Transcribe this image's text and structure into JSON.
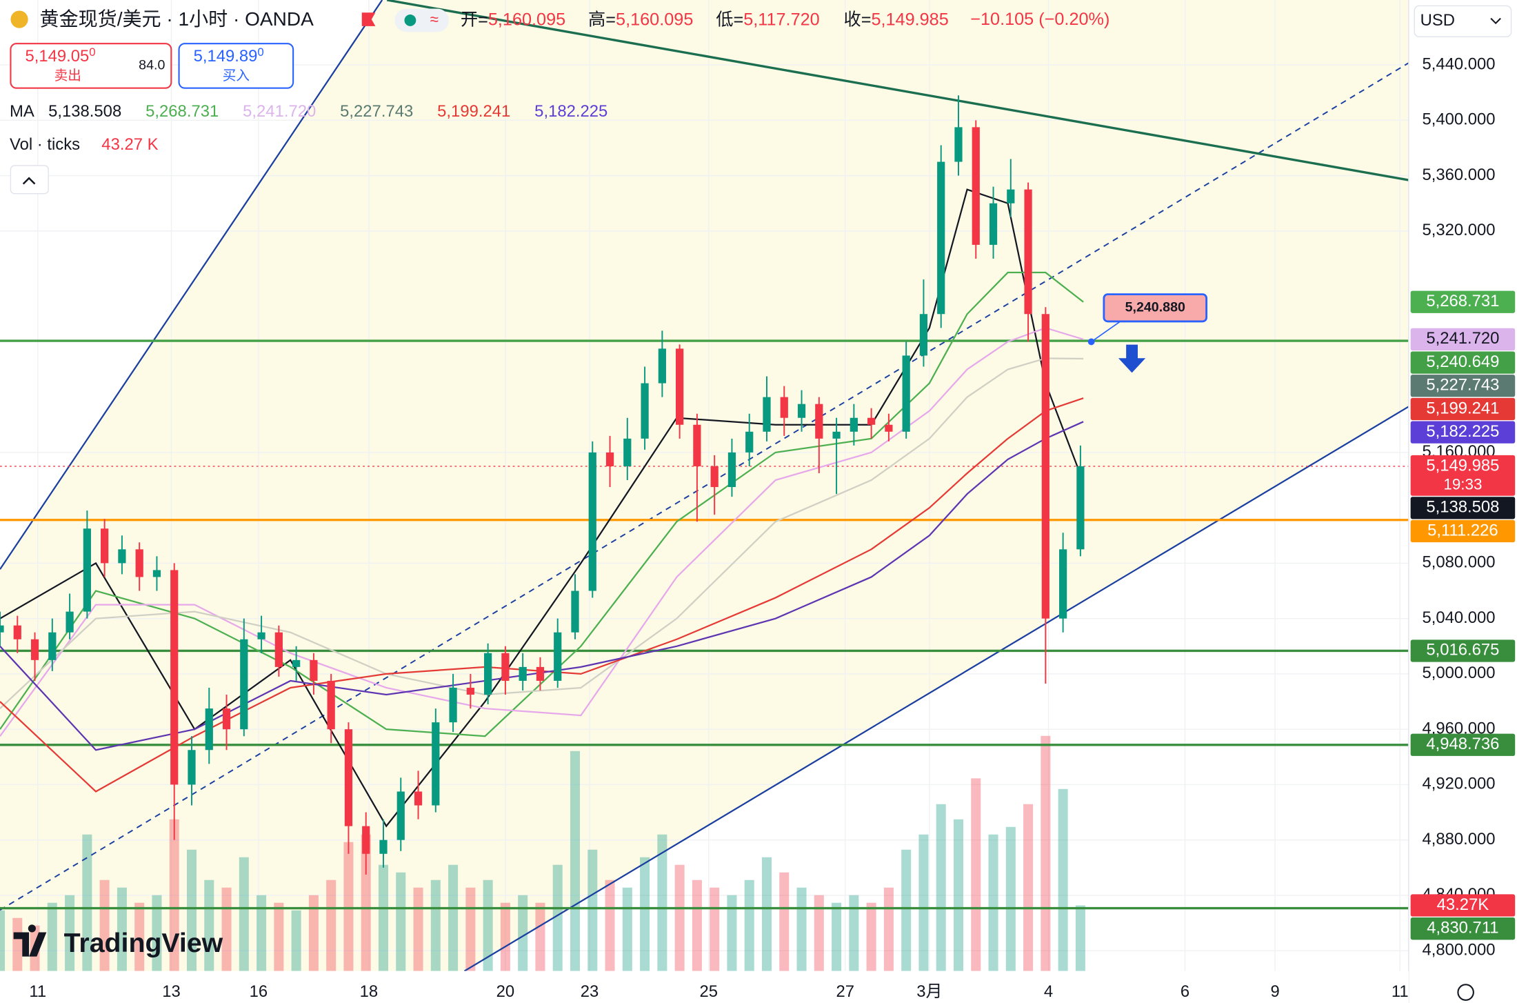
{
  "header": {
    "symbol": "黄金现货/美元 · 1小时 · OANDA",
    "ohlc": [
      {
        "label": "开=",
        "value": "5,160.095"
      },
      {
        "label": "高=",
        "value": "5,160.095"
      },
      {
        "label": "低=",
        "value": "5,117.720"
      },
      {
        "label": "收=",
        "value": "5,149.985"
      }
    ],
    "change": "−10.105 (−0.20%)"
  },
  "trade": {
    "sell": {
      "price": "5,149.05",
      "sup": "0",
      "label": "卖出"
    },
    "spread": "84.0",
    "buy": {
      "price": "5,149.89",
      "sup": "0",
      "label": "买入"
    }
  },
  "indicators": {
    "ma_label": "MA",
    "vol_label": "Vol · ticks",
    "vol_value": "43.27 K"
  },
  "currency": "USD",
  "watermark": "TradingView",
  "callout": "5,240.880",
  "chart_data": {
    "type": "candlestick",
    "up_color": "#089981",
    "down_color": "#f23645",
    "x": [
      0,
      6,
      12,
      18,
      24,
      30,
      36,
      42,
      48,
      54,
      60,
      66,
      72,
      78,
      84,
      90,
      96,
      102,
      108,
      114,
      120,
      126,
      132,
      138,
      144,
      150,
      156,
      162,
      168,
      174,
      180,
      186,
      192,
      198,
      204,
      210,
      216,
      222,
      228,
      234,
      240,
      246,
      252,
      258,
      264,
      270,
      276,
      282,
      288,
      294,
      300,
      306,
      312,
      318,
      324,
      330,
      336,
      342,
      348,
      354,
      360,
      366,
      372
    ],
    "open": [
      5030,
      5035,
      5025,
      5010,
      5030,
      5045,
      5105,
      5080,
      5090,
      5070,
      5075,
      4920,
      4945,
      4975,
      4960,
      5025,
      5030,
      5005,
      5010,
      4995,
      4960,
      4890,
      4870,
      4880,
      4915,
      4905,
      4965,
      4990,
      4985,
      5015,
      4995,
      5005,
      4995,
      5030,
      5060,
      5160,
      5150,
      5170,
      5210,
      5235,
      5180,
      5150,
      5135,
      5160,
      5175,
      5200,
      5185,
      5195,
      5170,
      5175,
      5185,
      5180,
      5175,
      5230,
      5260,
      5370,
      5395,
      5310,
      5340,
      5350,
      5260,
      5040,
      5090
    ],
    "high": [
      5045,
      5042,
      5030,
      5040,
      5058,
      5118,
      5112,
      5100,
      5095,
      5085,
      5080,
      4955,
      4990,
      4985,
      5040,
      5042,
      5035,
      5020,
      5015,
      5000,
      4965,
      4900,
      4895,
      4925,
      4930,
      4975,
      5000,
      5000,
      5022,
      5020,
      5015,
      5012,
      5040,
      5072,
      5168,
      5172,
      5185,
      5222,
      5248,
      5238,
      5188,
      5158,
      5170,
      5188,
      5215,
      5208,
      5205,
      5200,
      5185,
      5195,
      5192,
      5188,
      5240,
      5285,
      5382,
      5418,
      5400,
      5352,
      5372,
      5355,
      5265,
      5102,
      5165
    ],
    "low": [
      5020,
      5015,
      4995,
      5002,
      5025,
      5040,
      5070,
      5072,
      5060,
      5060,
      4880,
      4905,
      4935,
      4945,
      4955,
      5015,
      4998,
      4995,
      4985,
      4950,
      4870,
      4855,
      4860,
      4872,
      4895,
      4900,
      4958,
      4975,
      4978,
      4985,
      4988,
      4988,
      4990,
      5025,
      5055,
      5135,
      5140,
      5162,
      5200,
      5170,
      5110,
      5115,
      5128,
      5150,
      5168,
      5172,
      5175,
      5145,
      5130,
      5165,
      5170,
      5168,
      5170,
      5222,
      5250,
      5360,
      5300,
      5300,
      5330,
      5240,
      4993,
      5030,
      5085
    ],
    "close": [
      5035,
      5025,
      5010,
      5030,
      5045,
      5105,
      5080,
      5090,
      5070,
      5075,
      4920,
      4945,
      4975,
      4960,
      5025,
      5030,
      5005,
      5010,
      4995,
      4960,
      4890,
      4870,
      4880,
      4915,
      4905,
      4965,
      4990,
      4985,
      5015,
      4995,
      5005,
      4995,
      5030,
      5060,
      5160,
      5150,
      5170,
      5210,
      5235,
      5180,
      5150,
      5135,
      5160,
      5175,
      5200,
      5185,
      5195,
      5170,
      5175,
      5185,
      5180,
      5175,
      5230,
      5260,
      5370,
      5395,
      5310,
      5340,
      5350,
      5260,
      5040,
      5090,
      5150
    ],
    "volume": [
      40,
      35,
      30,
      45,
      50,
      90,
      60,
      55,
      45,
      50,
      100,
      80,
      60,
      55,
      75,
      50,
      45,
      40,
      50,
      60,
      85,
      90,
      70,
      65,
      55,
      60,
      70,
      55,
      60,
      45,
      50,
      45,
      70,
      145,
      80,
      60,
      55,
      75,
      90,
      70,
      60,
      55,
      50,
      60,
      75,
      65,
      55,
      50,
      45,
      50,
      45,
      55,
      80,
      90,
      110,
      100,
      127,
      90,
      95,
      110,
      155,
      120,
      43.27
    ],
    "xlim": [
      0,
      485
    ],
    "xticks": [
      {
        "value": 13,
        "label": "11"
      },
      {
        "value": 59,
        "label": "13"
      },
      {
        "value": 89,
        "label": "16"
      },
      {
        "value": 127,
        "label": "18"
      },
      {
        "value": 174,
        "label": "20"
      },
      {
        "value": 203,
        "label": "23"
      },
      {
        "value": 244,
        "label": "25"
      },
      {
        "value": 291,
        "label": "27"
      },
      {
        "value": 320,
        "label": "3月"
      },
      {
        "value": 361,
        "label": "4"
      },
      {
        "value": 408,
        "label": "6"
      },
      {
        "value": 439,
        "label": "9"
      },
      {
        "value": 482,
        "label": "11"
      }
    ],
    "ylim": [
      4785.3,
      5486.9
    ],
    "yticks": [
      {
        "value": 5440,
        "label": "5,440.000"
      },
      {
        "value": 5400,
        "label": "5,400.000"
      },
      {
        "value": 5360,
        "label": "5,360.000"
      },
      {
        "value": 5320,
        "label": "5,320.000"
      },
      {
        "value": 5160,
        "label": "5,160.000"
      },
      {
        "value": 5080,
        "label": "5,080.000"
      },
      {
        "value": 5040,
        "label": "5,040.000"
      },
      {
        "value": 5000,
        "label": "5,000.000"
      },
      {
        "value": 4960,
        "label": "4,960.000"
      },
      {
        "value": 4920,
        "label": "4,920.000"
      },
      {
        "value": 4880,
        "label": "4,880.000"
      },
      {
        "value": 4840,
        "label": "4,840.000"
      },
      {
        "value": 4800,
        "label": "4,800.000"
      }
    ],
    "y2lim": [
      0,
      640
    ],
    "grid": true,
    "ma_x": [
      0,
      33,
      67,
      100,
      133,
      167,
      200,
      233,
      267,
      300,
      320,
      333,
      347,
      360,
      373
    ],
    "ma": [
      {
        "color": "#131722",
        "badge_color": "#131722",
        "label": "5,138.508",
        "values": [
          5040,
          5080,
          4960,
          5010,
          4890,
          4980,
          5080,
          5185,
          5180,
          5180,
          5250,
          5350,
          5340,
          5210,
          5138.508
        ]
      },
      {
        "color": "#4caf50",
        "badge_color": "#4caf50",
        "label": "5,268.731",
        "values": [
          4960,
          5060,
          5040,
          5005,
          4960,
          4955,
          5020,
          5110,
          5160,
          5170,
          5210,
          5260,
          5290,
          5290,
          5268.731
        ]
      },
      {
        "color": "#e6a8ea",
        "badge_color": "#dcb4ec",
        "label": "5,241.720",
        "values": [
          4955,
          5050,
          5050,
          5015,
          4990,
          4975,
          4970,
          5070,
          5140,
          5160,
          5190,
          5220,
          5240,
          5250,
          5241.72
        ]
      },
      {
        "color": "#cfcfc4",
        "badge_color": "#5b7a72",
        "label": "5,227.743",
        "values": [
          4975,
          5040,
          5045,
          5030,
          5000,
          4985,
          4990,
          5040,
          5110,
          5140,
          5170,
          5200,
          5220,
          5228,
          5227.743
        ]
      },
      {
        "color": "#e53935",
        "badge_color": "#e53935",
        "label": "5,199.241",
        "values": [
          4980,
          4915,
          4955,
          4990,
          5000,
          5005,
          5000,
          5025,
          5055,
          5090,
          5120,
          5145,
          5170,
          5190,
          5199.241
        ]
      },
      {
        "color": "#5e35b1",
        "badge_color": "#5b3fd6",
        "label": "5,182.225",
        "values": [
          5020,
          4945,
          4960,
          4995,
          4985,
          4995,
          5005,
          5020,
          5040,
          5070,
          5100,
          5130,
          5155,
          5170,
          5182.225
        ]
      }
    ],
    "hlines": [
      {
        "value": 5240.649,
        "label": "5,240.649",
        "color": "#43a047"
      },
      {
        "value": 5111.226,
        "label": "5,111.226",
        "color": "#ff9800"
      },
      {
        "value": 5016.675,
        "label": "5,016.675",
        "color": "#388e3c"
      },
      {
        "value": 4948.736,
        "label": "4,948.736",
        "color": "#388e3c"
      },
      {
        "value": 4830.711,
        "label": "4,830.711",
        "color": "#388e3c"
      }
    ],
    "last_price": {
      "value": 5149.985,
      "label": "5,149.985",
      "countdown": "19:33",
      "color": "#f23645"
    },
    "volume_badge": {
      "value": 43.27,
      "label": "43.27K",
      "color": "#f23645"
    }
  }
}
